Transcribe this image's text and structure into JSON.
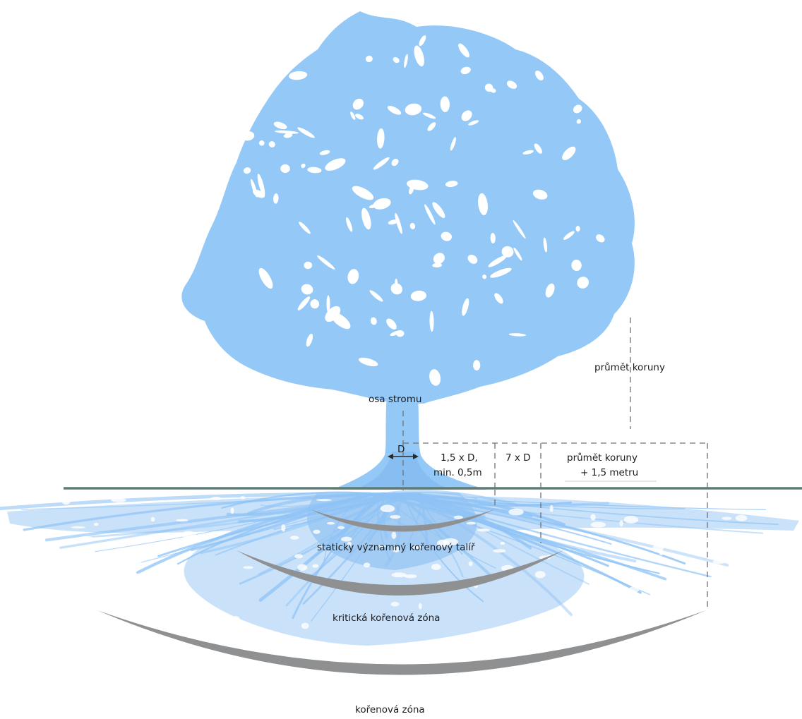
{
  "labels": {
    "crown_projection": "průmět koruny",
    "tree_axis": "osa stromu",
    "diameter": "D",
    "zone_stem_line1": "1,5 x D,",
    "zone_stem_line2": "min. 0,5m",
    "zone_middle": "7 x D",
    "zone_outer_line1": "průmět koruny",
    "zone_outer_line2": "+ 1,5 metru",
    "root_plate": "staticky významný kořenový talíř",
    "critical_root_zone": "kritická kořenová zóna",
    "root_zone": "kořenová zóna"
  },
  "colors": {
    "foliage": "#93c8f7",
    "roots": "#9ccbf6",
    "root_dark": "#7db6ee",
    "ground": "#5f7b76",
    "arc": "#8f9091",
    "dashed": "#6d7177",
    "text": "#1c1c1c"
  }
}
